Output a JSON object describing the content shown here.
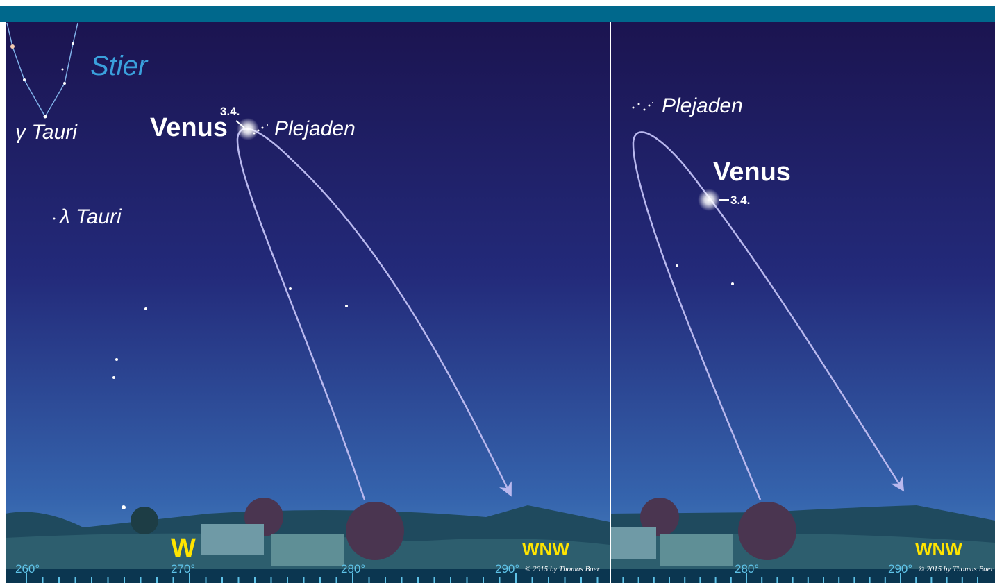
{
  "left_panel": {
    "constellation": "Stier",
    "gamma": "γ Tauri",
    "lambda": "λ Tauri",
    "planet": "Venus",
    "date": "3.4.",
    "cluster": "Plejaden",
    "west": "W",
    "wnw": "WNW",
    "degrees": [
      "260°",
      "270°",
      "280°",
      "290°"
    ],
    "credit": "© 2015 by Thomas Baer"
  },
  "right_panel": {
    "cluster": "Plejaden",
    "planet": "Venus",
    "date": "3.4.",
    "wnw": "WNW",
    "degrees": [
      "280°",
      "290°"
    ],
    "credit": "© 2015 by Thomas Baer"
  }
}
